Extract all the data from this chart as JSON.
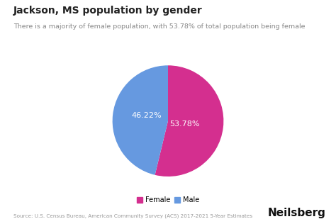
{
  "title": "Jackson, MS population by gender",
  "subtitle": "There is a majority of female population, with 53.78% of total population being female",
  "slices": [
    53.78,
    46.22
  ],
  "labels": [
    "Female",
    "Male"
  ],
  "colors": [
    "#d42f8f",
    "#6699e0"
  ],
  "pct_labels": [
    "53.78%",
    "46.22%"
  ],
  "legend_labels": [
    "Female",
    "Male"
  ],
  "source_text": "Source: U.S. Census Bureau, American Community Survey (ACS) 2017-2021 5-Year Estimates",
  "brand_text": "Neilsberg",
  "background_color": "#ffffff",
  "text_color": "#222222",
  "subtitle_color": "#888888",
  "pct_text_color": "#ffffff",
  "source_color": "#999999",
  "brand_color": "#111111"
}
